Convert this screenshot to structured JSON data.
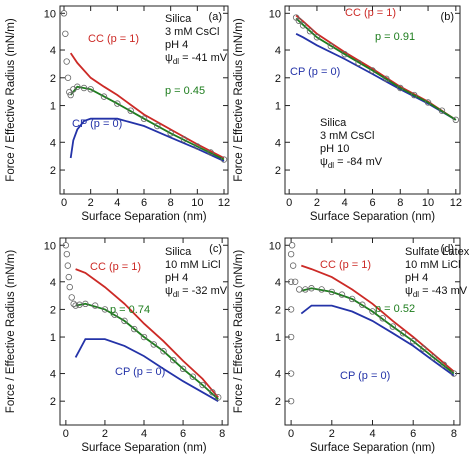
{
  "chart_data": [
    {
      "type": "line",
      "panel_label": "(a)",
      "xlabel": "Surface Separation (nm)",
      "ylabel": "Force / Effective Radius (mN/m)",
      "log_y": true,
      "xlim": [
        -0.3,
        12.3
      ],
      "xticks": [
        0,
        2,
        4,
        6,
        8,
        10,
        12
      ],
      "ylim": [
        0.11,
        12
      ],
      "yticks": [
        {
          "value": 0.2,
          "label": "2"
        },
        {
          "value": 0.4,
          "label": "4"
        },
        1,
        {
          "value": 2,
          "label": "2"
        },
        {
          "value": 4,
          "label": "4"
        },
        10
      ],
      "conditions": [
        "Silica",
        "3 mM CsCl",
        "pH 4"
      ],
      "potential": {
        "symbol": "ψ",
        "subscript": "dl",
        "text": " = -41 mV"
      },
      "series": [
        {
          "name": "CC (p = 1)",
          "color": "#cc2a26",
          "style": "line",
          "x": [
            0.5,
            1,
            2,
            3,
            4,
            6,
            8,
            10,
            12
          ],
          "values": [
            3.7,
            2.9,
            2.0,
            1.6,
            1.3,
            0.8,
            0.55,
            0.38,
            0.27
          ]
        },
        {
          "name": "CP (p = 0)",
          "color": "#2433a8",
          "style": "line",
          "x": [
            0.5,
            0.7,
            1,
            1.5,
            2,
            4,
            6,
            8,
            10,
            12
          ],
          "values": [
            0.27,
            0.42,
            0.55,
            0.68,
            0.72,
            0.72,
            0.6,
            0.45,
            0.34,
            0.25
          ]
        },
        {
          "name": "p = 0.45",
          "color": "#1e7d1e",
          "style": "line",
          "x": [
            0.5,
            1,
            2,
            4,
            6,
            8,
            10,
            12
          ],
          "values": [
            1.3,
            1.6,
            1.5,
            1.05,
            0.72,
            0.5,
            0.36,
            0.26
          ]
        },
        {
          "name": null,
          "color": "#666666",
          "style": "points",
          "x": [
            0,
            0.1,
            0.2,
            0.3,
            0.4,
            0.5,
            0.7,
            1,
            1.5,
            2,
            3,
            4,
            5,
            6,
            7,
            8,
            9,
            10,
            11,
            12
          ],
          "values": [
            10,
            6,
            3,
            2,
            1.4,
            1.3,
            1.5,
            1.6,
            1.55,
            1.5,
            1.25,
            1.05,
            0.88,
            0.72,
            0.6,
            0.5,
            0.43,
            0.36,
            0.31,
            0.26
          ]
        }
      ]
    },
    {
      "type": "line",
      "panel_label": "(b)",
      "xlabel": "Surface Separation (nm)",
      "ylabel": "Force / Effective Radius (mN/m)",
      "log_y": true,
      "xlim": [
        -0.3,
        12.3
      ],
      "xticks": [
        0,
        2,
        4,
        6,
        8,
        10,
        12
      ],
      "ylim": [
        0.11,
        12
      ],
      "yticks": [
        {
          "value": 0.2,
          "label": "2"
        },
        {
          "value": 0.4,
          "label": "4"
        },
        1,
        {
          "value": 2,
          "label": "2"
        },
        {
          "value": 4,
          "label": "4"
        },
        10
      ],
      "conditions": [
        "Silica",
        "3 mM CsCl",
        "pH 10"
      ],
      "potential": {
        "symbol": "ψ",
        "subscript": "dl",
        "text": " = -84 mV"
      },
      "series": [
        {
          "name": "CC (p = 1)",
          "color": "#cc2a26",
          "style": "line",
          "x": [
            0.5,
            1,
            2,
            4,
            6,
            8,
            10,
            12
          ],
          "values": [
            9.5,
            8.2,
            6.0,
            3.8,
            2.5,
            1.6,
            1.1,
            0.7
          ]
        },
        {
          "name": "CP (p = 0)",
          "color": "#2433a8",
          "style": "line",
          "x": [
            0.5,
            1,
            2,
            4,
            6,
            8,
            10,
            12
          ],
          "values": [
            6.0,
            5.5,
            4.5,
            3.2,
            2.2,
            1.5,
            1.05,
            0.7
          ]
        },
        {
          "name": "p = 0.91",
          "color": "#1e7d1e",
          "style": "line",
          "x": [
            0.5,
            1,
            2,
            4,
            6,
            8,
            10,
            12
          ],
          "values": [
            8.8,
            7.5,
            5.5,
            3.6,
            2.4,
            1.55,
            1.08,
            0.7
          ]
        },
        {
          "name": null,
          "color": "#666666",
          "style": "points",
          "x": [
            0.5,
            0.7,
            1,
            1.5,
            2,
            3,
            4,
            5,
            6,
            7,
            8,
            9,
            10,
            11,
            12
          ],
          "values": [
            9.0,
            8.3,
            7.4,
            6.4,
            5.5,
            4.4,
            3.6,
            2.9,
            2.4,
            1.95,
            1.55,
            1.3,
            1.08,
            0.88,
            0.7
          ]
        }
      ]
    },
    {
      "type": "line",
      "panel_label": "(c)",
      "xlabel": "Surface Separation (nm)",
      "ylabel": "Force / Effective Radius (mN/m)",
      "log_y": true,
      "xlim": [
        -0.3,
        8.3
      ],
      "xticks": [
        0,
        2,
        4,
        6,
        8
      ],
      "ylim": [
        0.11,
        12
      ],
      "yticks": [
        {
          "value": 0.2,
          "label": "2"
        },
        {
          "value": 0.4,
          "label": "4"
        },
        1,
        {
          "value": 2,
          "label": "2"
        },
        {
          "value": 4,
          "label": "4"
        },
        10
      ],
      "conditions": [
        "Silica",
        "10 mM LiCl",
        "pH 4"
      ],
      "potential": {
        "symbol": "ψ",
        "subscript": "dl",
        "text": " = -32 mV"
      },
      "series": [
        {
          "name": "CC (p = 1)",
          "color": "#cc2a26",
          "style": "line",
          "x": [
            0.5,
            1,
            2,
            3,
            4,
            5,
            6,
            7,
            7.8
          ],
          "values": [
            5.5,
            5.0,
            3.5,
            2.3,
            1.4,
            0.9,
            0.55,
            0.35,
            0.22
          ]
        },
        {
          "name": "CP (p = 0)",
          "color": "#2433a8",
          "style": "line",
          "x": [
            0.5,
            1,
            2,
            3,
            4,
            5,
            6,
            7,
            7.8
          ],
          "values": [
            0.6,
            0.95,
            0.95,
            0.8,
            0.62,
            0.45,
            0.33,
            0.25,
            0.2
          ]
        },
        {
          "name": "p = 0.74",
          "color": "#1e7d1e",
          "style": "line",
          "x": [
            0.5,
            1,
            2,
            3,
            4,
            5,
            6,
            7,
            7.8
          ],
          "values": [
            2.2,
            2.3,
            2.0,
            1.5,
            1.0,
            0.7,
            0.45,
            0.3,
            0.21
          ]
        },
        {
          "name": null,
          "color": "#666666",
          "style": "points",
          "x": [
            0,
            0.05,
            0.1,
            0.15,
            0.2,
            0.3,
            0.4,
            0.5,
            0.7,
            1,
            1.5,
            2,
            2.5,
            3,
            3.5,
            4,
            4.5,
            5,
            5.5,
            6,
            6.5,
            7,
            7.5,
            7.8
          ],
          "values": [
            10,
            8,
            6,
            4.5,
            3.5,
            2.7,
            2.3,
            2.2,
            2.25,
            2.3,
            2.2,
            2.0,
            1.75,
            1.5,
            1.22,
            1.0,
            0.83,
            0.7,
            0.56,
            0.45,
            0.37,
            0.3,
            0.25,
            0.22
          ]
        }
      ]
    },
    {
      "type": "line",
      "panel_label": "(d)",
      "xlabel": "Surface Separation (nm)",
      "ylabel": "Force / Effective Radius (mN/m)",
      "log_y": true,
      "xlim": [
        -0.3,
        8.3
      ],
      "xticks": [
        0,
        2,
        4,
        6,
        8
      ],
      "ylim": [
        0.11,
        12
      ],
      "yticks": [
        {
          "value": 0.2,
          "label": "2"
        },
        {
          "value": 0.4,
          "label": "4"
        },
        1,
        {
          "value": 2,
          "label": "2"
        },
        {
          "value": 4,
          "label": "4"
        },
        10
      ],
      "conditions": [
        "Sulfate Latex",
        "10 mM LiCl",
        "pH 4"
      ],
      "potential": {
        "symbol": "ψ",
        "subscript": "dl",
        "text": " = -43 mV"
      },
      "series": [
        {
          "name": "CC (p = 1)",
          "color": "#cc2a26",
          "style": "line",
          "x": [
            0.5,
            1,
            2,
            3,
            4,
            5,
            6,
            7,
            8
          ],
          "values": [
            6.0,
            5.5,
            4.5,
            3.3,
            2.3,
            1.5,
            1.0,
            0.65,
            0.42
          ]
        },
        {
          "name": "CP (p = 0)",
          "color": "#2433a8",
          "style": "line",
          "x": [
            0.5,
            1,
            2,
            3,
            4,
            5,
            6,
            7,
            8
          ],
          "values": [
            1.8,
            2.2,
            2.2,
            1.9,
            1.5,
            1.1,
            0.8,
            0.55,
            0.38
          ]
        },
        {
          "name": "p = 0.52",
          "color": "#1e7d1e",
          "style": "line",
          "x": [
            0.5,
            1,
            2,
            3,
            4,
            5,
            6,
            7,
            8
          ],
          "values": [
            3.2,
            3.4,
            3.1,
            2.6,
            1.9,
            1.3,
            0.9,
            0.6,
            0.4
          ]
        },
        {
          "name": null,
          "color": "#666666",
          "style": "points",
          "x": [
            0,
            0,
            0,
            0,
            0,
            0,
            0.05,
            0.1,
            0.2,
            0.4,
            0.7,
            1,
            1.5,
            2,
            2.5,
            3,
            3.5,
            4,
            4.5,
            5,
            5.5,
            6,
            6.5,
            7,
            7.5,
            8
          ],
          "values": [
            0.2,
            0.4,
            1,
            2,
            4,
            8,
            10,
            6,
            4,
            3.3,
            3.3,
            3.4,
            3.3,
            3.1,
            2.9,
            2.6,
            2.25,
            1.9,
            1.6,
            1.3,
            1.1,
            0.9,
            0.75,
            0.6,
            0.5,
            0.4
          ]
        }
      ]
    }
  ]
}
